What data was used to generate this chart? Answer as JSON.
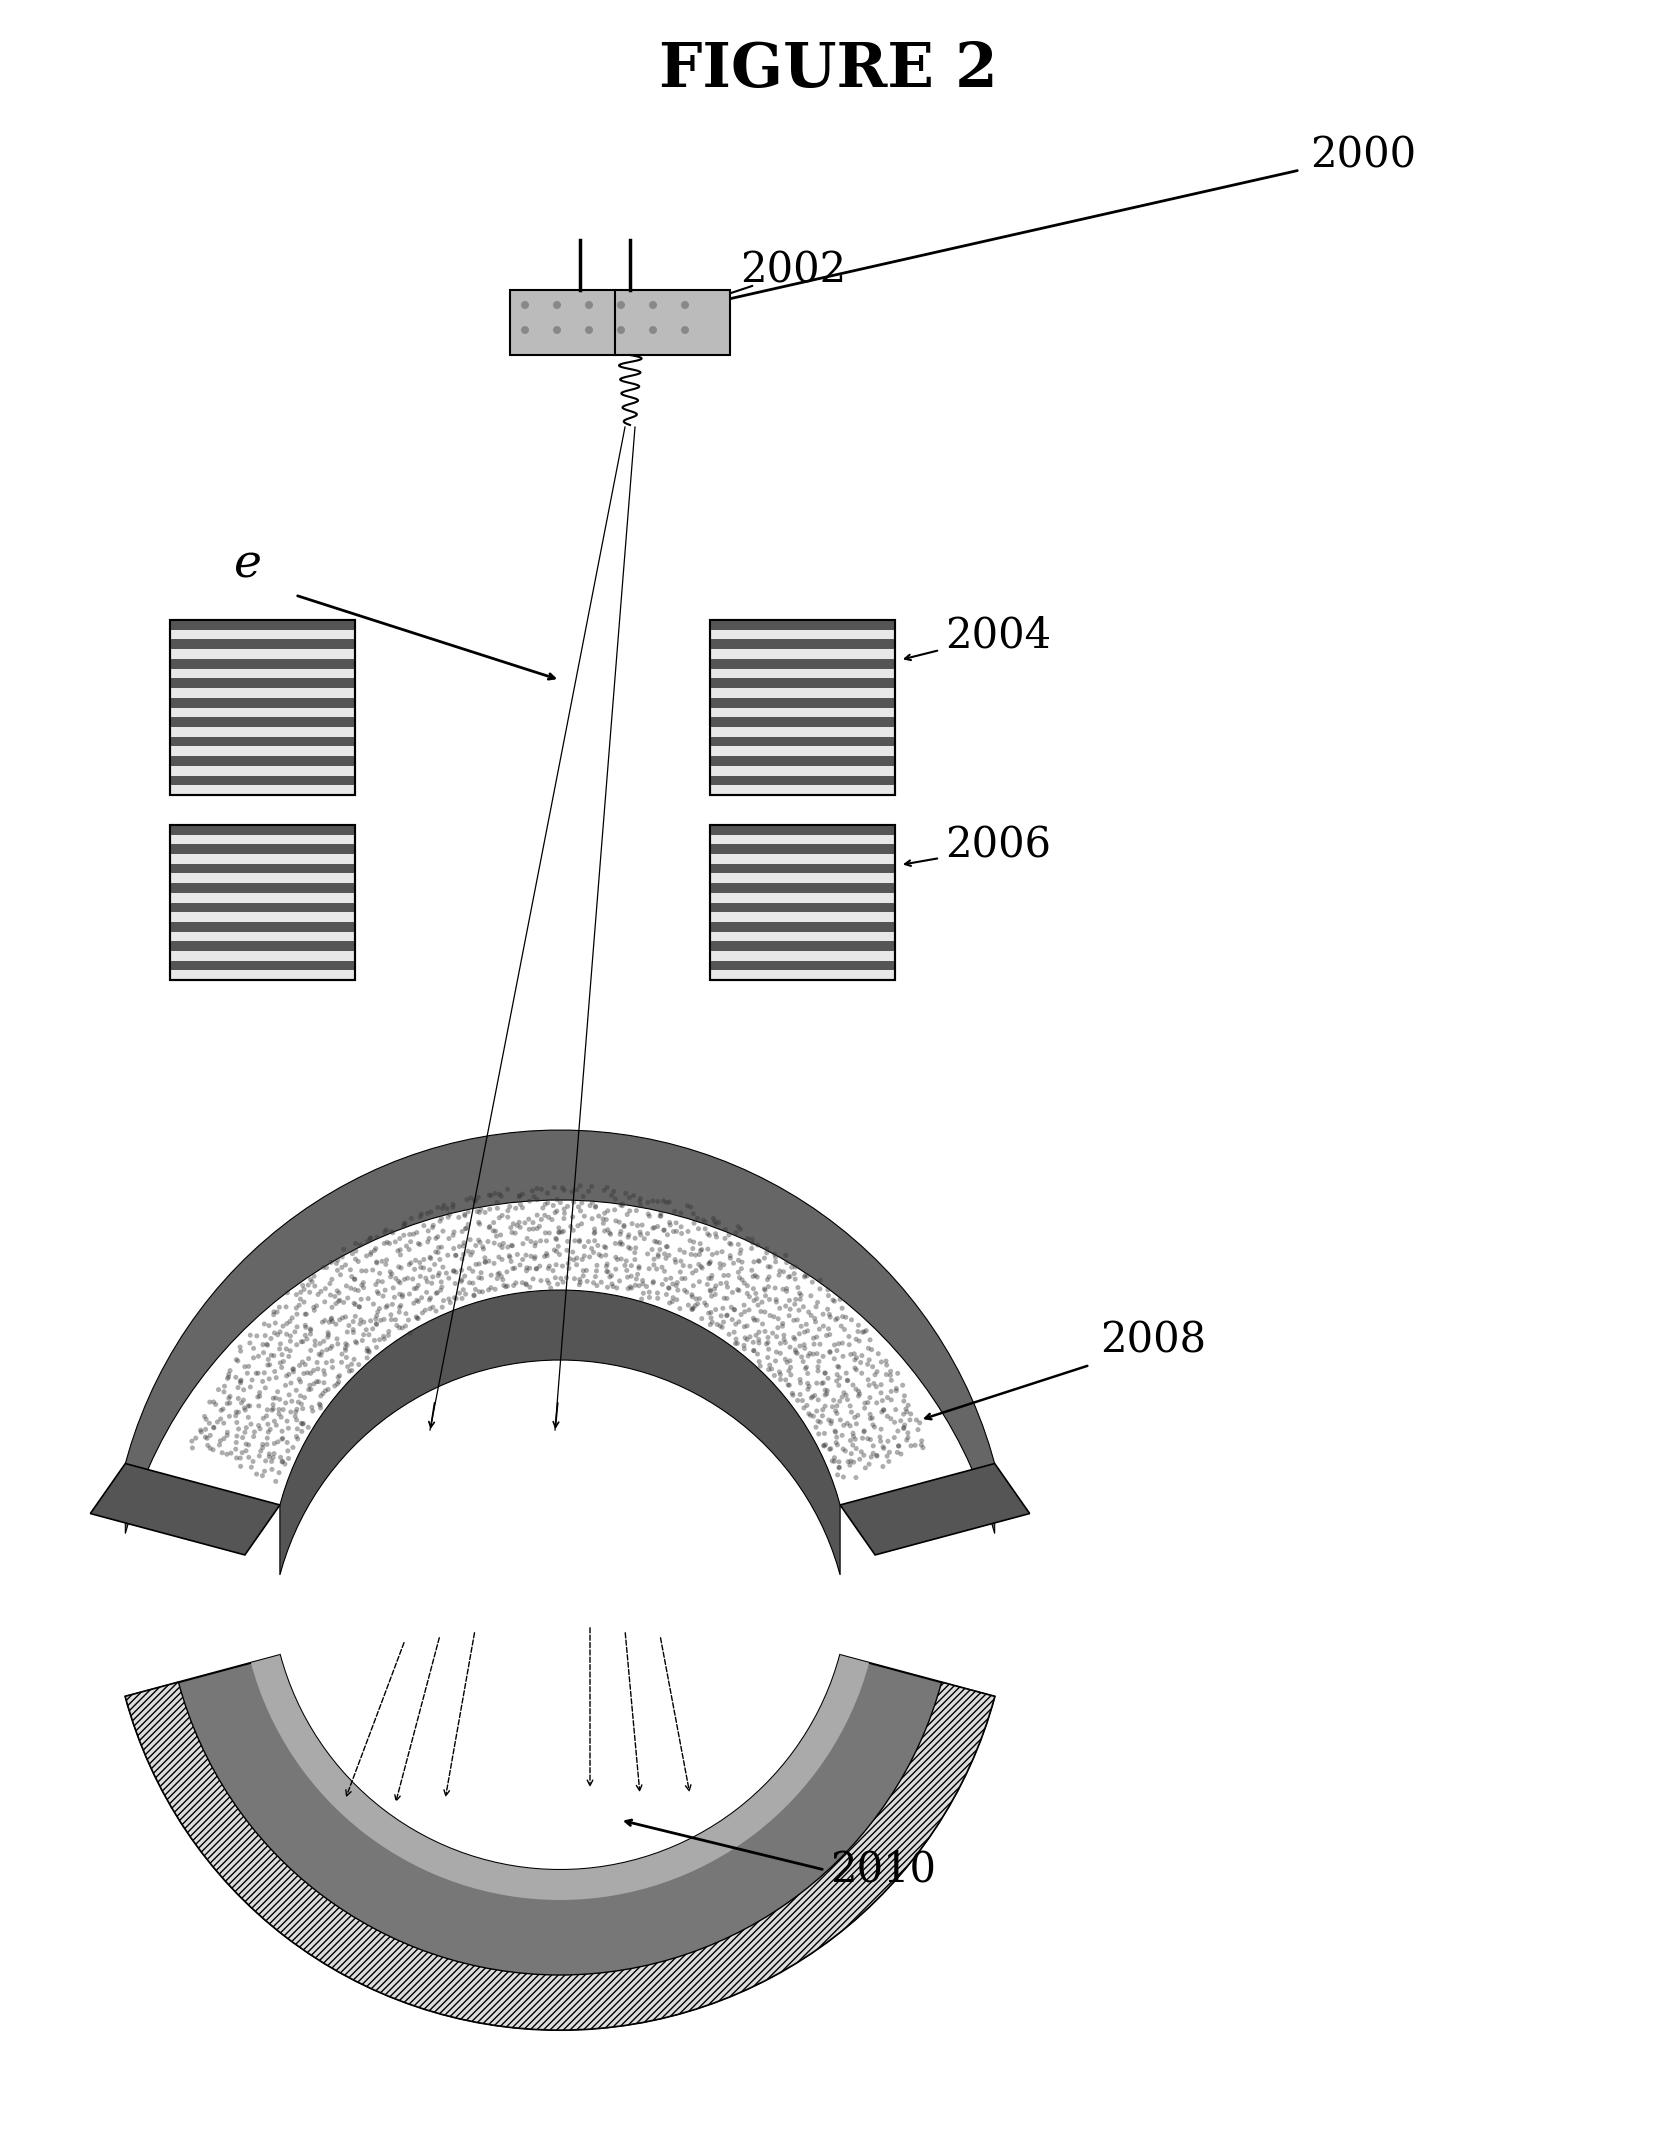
{
  "title": "FIGURE 2",
  "background_color": "#ffffff",
  "labels": {
    "figure": "FIGURE 2",
    "ref_2000": "2000",
    "ref_2002": "2002",
    "ref_2004": "2004",
    "ref_2006": "2006",
    "ref_2008": "2008",
    "ref_2010": "2010",
    "label_e": "e"
  },
  "figsize": [
    16.57,
    21.49
  ],
  "dpi": 100
}
